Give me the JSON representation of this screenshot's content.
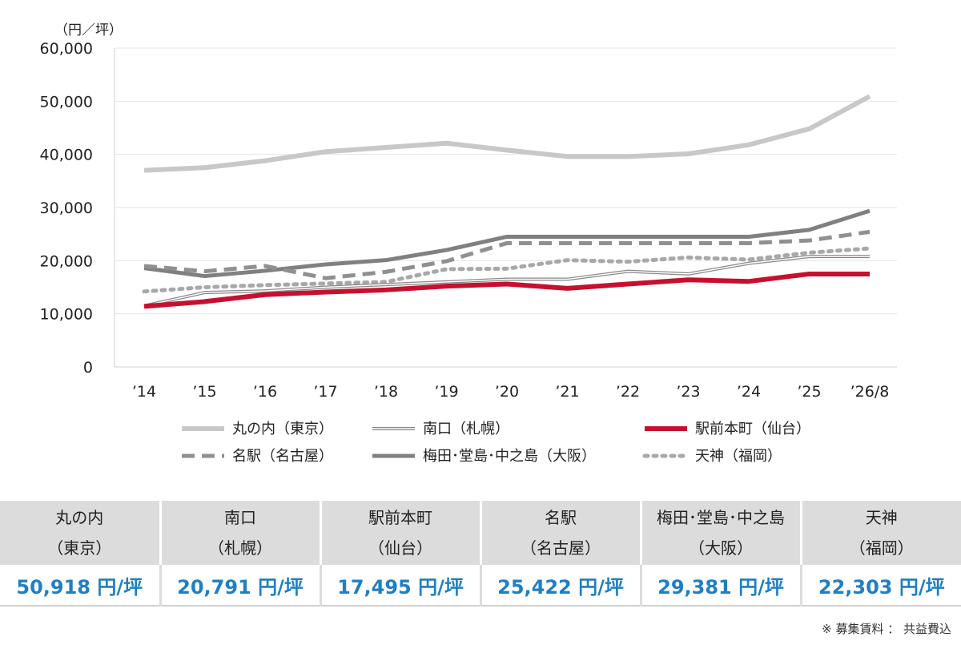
{
  "chart_data": {
    "type": "line",
    "unit_label": "（円／坪）",
    "categories": [
      "’14",
      "’15",
      "’16",
      "’17",
      "’18",
      "’19",
      "’20",
      "’21",
      "’22",
      "’23",
      "’24",
      "’25",
      "’26/8"
    ],
    "ylim": [
      0,
      60000
    ],
    "yticks": [
      "0",
      "10,000",
      "20,000",
      "30,000",
      "40,000",
      "50,000",
      "60,000"
    ],
    "grid": true,
    "legend_position": "bottom",
    "series": [
      {
        "name": "丸の内（東京）",
        "color": "#c8c8c8",
        "style": "solid-thick",
        "values": [
          37000,
          37500,
          38800,
          40500,
          41300,
          42100,
          40800,
          39600,
          39600,
          40100,
          41800,
          44800,
          50918
        ]
      },
      {
        "name": "南口（札幌）",
        "color": "#888888",
        "style": "double",
        "values": [
          11500,
          14000,
          14300,
          15000,
          15500,
          16000,
          16500,
          16500,
          18000,
          17500,
          19500,
          20791,
          20791
        ]
      },
      {
        "name": "駅前本町（仙台）",
        "color": "#c8102e",
        "style": "solid-thick",
        "values": [
          11400,
          12300,
          13600,
          14100,
          14500,
          15200,
          15600,
          14800,
          15600,
          16400,
          16100,
          17495,
          17495
        ]
      },
      {
        "name": "名駅（名古屋）",
        "color": "#909090",
        "style": "dashed",
        "values": [
          19000,
          18000,
          19000,
          16700,
          17900,
          19900,
          23300,
          23300,
          23300,
          23300,
          23300,
          23800,
          25422
        ]
      },
      {
        "name": "梅田･堂島･中之島（大阪）",
        "color": "#808080",
        "style": "solid-medium",
        "values": [
          18600,
          17100,
          18100,
          19300,
          20100,
          22000,
          24500,
          24500,
          24500,
          24500,
          24500,
          25800,
          29381
        ]
      },
      {
        "name": "天神（福岡）",
        "color": "#a8a8a8",
        "style": "dotted",
        "values": [
          14200,
          15000,
          15400,
          15700,
          16000,
          18400,
          18500,
          20100,
          19800,
          20600,
          20200,
          21500,
          22303
        ]
      }
    ]
  },
  "summary": [
    {
      "name": "丸の内",
      "area": "（東京）",
      "value": "50,918 円/坪"
    },
    {
      "name": "南口",
      "area": "（札幌）",
      "value": "20,791 円/坪"
    },
    {
      "name": "駅前本町",
      "area": "（仙台）",
      "value": "17,495 円/坪"
    },
    {
      "name": "名駅",
      "area": "（名古屋）",
      "value": "25,422 円/坪"
    },
    {
      "name": "梅田･堂島･中之島",
      "area": "（大阪）",
      "value": "29,381 円/坪"
    },
    {
      "name": "天神",
      "area": "（福岡）",
      "value": "22,303 円/坪"
    }
  ],
  "note": "※ 募集賃料 ： 共益費込"
}
